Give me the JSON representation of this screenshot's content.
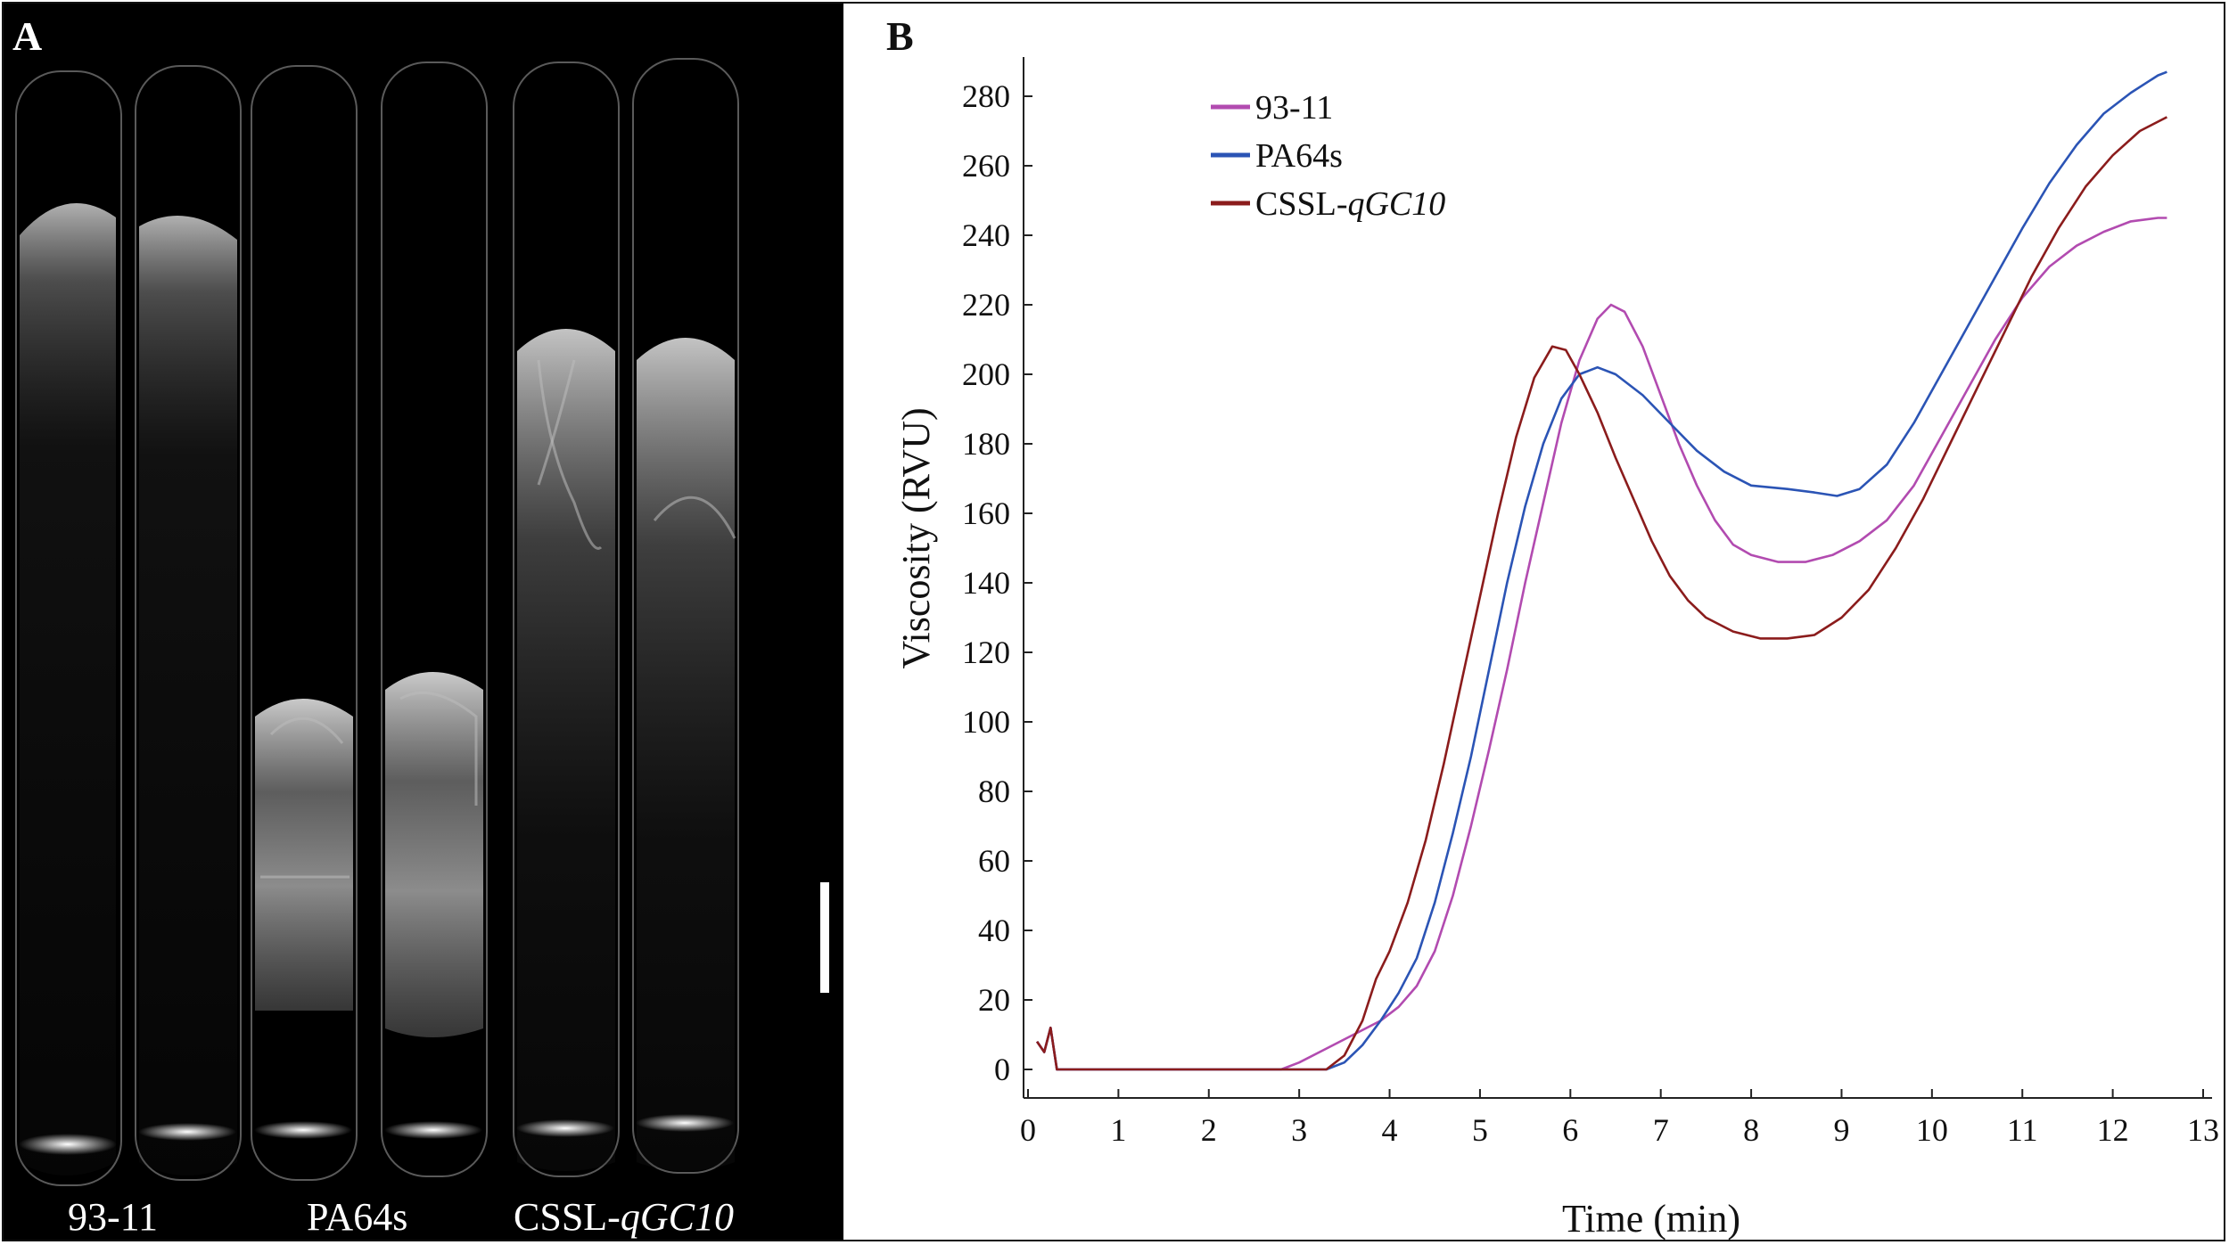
{
  "panel_a": {
    "letter": "A",
    "tube_labels": [
      {
        "text": "93-11"
      },
      {
        "text": "PA64s"
      },
      {
        "prefix": "CSSL-",
        "italic": "qGC10"
      }
    ]
  },
  "panel_b": {
    "letter": "B"
  },
  "colors": {
    "93-11": "#b24bb0",
    "PA64s": "#2b54b5",
    "CSSL-qGC10": "#8b1c1c"
  },
  "chart_data": {
    "type": "line",
    "xlabel": "Time  (min)",
    "ylabel": "Viscosity  (RVU)",
    "xlim": [
      0,
      13
    ],
    "ylim": [
      0,
      280
    ],
    "xticks": [
      0,
      1,
      2,
      3,
      4,
      5,
      6,
      7,
      8,
      9,
      10,
      11,
      12,
      13
    ],
    "yticks": [
      0,
      20,
      40,
      60,
      80,
      100,
      120,
      140,
      160,
      180,
      200,
      220,
      240,
      260,
      280
    ],
    "legend_position": "top-left",
    "series": [
      {
        "name": "93-11",
        "name_prefix": "93-11",
        "name_italic": "",
        "points": [
          [
            0.1,
            8
          ],
          [
            0.18,
            5
          ],
          [
            0.25,
            12
          ],
          [
            0.32,
            0
          ],
          [
            0.5,
            0
          ],
          [
            1,
            0
          ],
          [
            2,
            0
          ],
          [
            2.8,
            0
          ],
          [
            3.0,
            2
          ],
          [
            3.3,
            6
          ],
          [
            3.6,
            10
          ],
          [
            3.9,
            14
          ],
          [
            4.1,
            18
          ],
          [
            4.3,
            24
          ],
          [
            4.5,
            34
          ],
          [
            4.7,
            50
          ],
          [
            4.9,
            70
          ],
          [
            5.1,
            92
          ],
          [
            5.3,
            115
          ],
          [
            5.5,
            140
          ],
          [
            5.7,
            163
          ],
          [
            5.9,
            186
          ],
          [
            6.1,
            204
          ],
          [
            6.3,
            216
          ],
          [
            6.45,
            220
          ],
          [
            6.6,
            218
          ],
          [
            6.8,
            208
          ],
          [
            7.0,
            194
          ],
          [
            7.2,
            180
          ],
          [
            7.4,
            168
          ],
          [
            7.6,
            158
          ],
          [
            7.8,
            151
          ],
          [
            8.0,
            148
          ],
          [
            8.3,
            146
          ],
          [
            8.6,
            146
          ],
          [
            8.9,
            148
          ],
          [
            9.2,
            152
          ],
          [
            9.5,
            158
          ],
          [
            9.8,
            168
          ],
          [
            10.1,
            182
          ],
          [
            10.4,
            196
          ],
          [
            10.7,
            210
          ],
          [
            11.0,
            222
          ],
          [
            11.3,
            231
          ],
          [
            11.6,
            237
          ],
          [
            11.9,
            241
          ],
          [
            12.2,
            244
          ],
          [
            12.5,
            245
          ],
          [
            12.6,
            245
          ]
        ]
      },
      {
        "name": "PA64s",
        "name_prefix": "PA64s",
        "name_italic": "",
        "points": [
          [
            0.1,
            8
          ],
          [
            0.18,
            5
          ],
          [
            0.25,
            12
          ],
          [
            0.32,
            0
          ],
          [
            0.5,
            0
          ],
          [
            1,
            0
          ],
          [
            2,
            0
          ],
          [
            3,
            0
          ],
          [
            3.3,
            0
          ],
          [
            3.5,
            2
          ],
          [
            3.7,
            7
          ],
          [
            3.9,
            14
          ],
          [
            4.1,
            22
          ],
          [
            4.3,
            32
          ],
          [
            4.5,
            48
          ],
          [
            4.7,
            68
          ],
          [
            4.9,
            90
          ],
          [
            5.1,
            115
          ],
          [
            5.3,
            140
          ],
          [
            5.5,
            162
          ],
          [
            5.7,
            180
          ],
          [
            5.9,
            193
          ],
          [
            6.1,
            200
          ],
          [
            6.3,
            202
          ],
          [
            6.5,
            200
          ],
          [
            6.8,
            194
          ],
          [
            7.1,
            186
          ],
          [
            7.4,
            178
          ],
          [
            7.7,
            172
          ],
          [
            8.0,
            168
          ],
          [
            8.4,
            167
          ],
          [
            8.7,
            166
          ],
          [
            8.95,
            165
          ],
          [
            9.2,
            167
          ],
          [
            9.5,
            174
          ],
          [
            9.8,
            186
          ],
          [
            10.1,
            200
          ],
          [
            10.4,
            214
          ],
          [
            10.7,
            228
          ],
          [
            11.0,
            242
          ],
          [
            11.3,
            255
          ],
          [
            11.6,
            266
          ],
          [
            11.9,
            275
          ],
          [
            12.2,
            281
          ],
          [
            12.5,
            286
          ],
          [
            12.6,
            287
          ]
        ]
      },
      {
        "name": "CSSL-qGC10",
        "name_prefix": "CSSL-",
        "name_italic": "qGC10",
        "points": [
          [
            0.1,
            8
          ],
          [
            0.18,
            5
          ],
          [
            0.25,
            12
          ],
          [
            0.32,
            0
          ],
          [
            0.5,
            0
          ],
          [
            1,
            0
          ],
          [
            2,
            0
          ],
          [
            3,
            0
          ],
          [
            3.3,
            0
          ],
          [
            3.5,
            4
          ],
          [
            3.7,
            14
          ],
          [
            3.85,
            26
          ],
          [
            4.0,
            34
          ],
          [
            4.2,
            48
          ],
          [
            4.4,
            66
          ],
          [
            4.6,
            88
          ],
          [
            4.8,
            112
          ],
          [
            5.0,
            136
          ],
          [
            5.2,
            160
          ],
          [
            5.4,
            182
          ],
          [
            5.6,
            199
          ],
          [
            5.8,
            208
          ],
          [
            5.95,
            207
          ],
          [
            6.1,
            200
          ],
          [
            6.3,
            189
          ],
          [
            6.5,
            176
          ],
          [
            6.7,
            164
          ],
          [
            6.9,
            152
          ],
          [
            7.1,
            142
          ],
          [
            7.3,
            135
          ],
          [
            7.5,
            130
          ],
          [
            7.8,
            126
          ],
          [
            8.1,
            124
          ],
          [
            8.4,
            124
          ],
          [
            8.7,
            125
          ],
          [
            9.0,
            130
          ],
          [
            9.3,
            138
          ],
          [
            9.6,
            150
          ],
          [
            9.9,
            164
          ],
          [
            10.2,
            180
          ],
          [
            10.5,
            196
          ],
          [
            10.8,
            212
          ],
          [
            11.1,
            228
          ],
          [
            11.4,
            242
          ],
          [
            11.7,
            254
          ],
          [
            12.0,
            263
          ],
          [
            12.3,
            270
          ],
          [
            12.6,
            274
          ]
        ]
      }
    ]
  }
}
